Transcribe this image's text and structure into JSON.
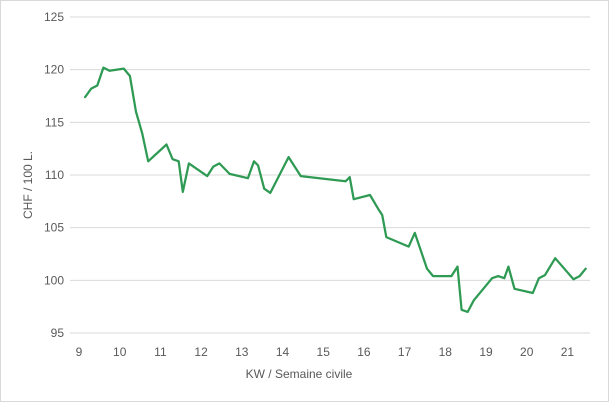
{
  "chart_data": {
    "type": "line",
    "title": "",
    "xlabel": "KW / Semaine civile",
    "ylabel": "CHF / 100 L.",
    "xlim": [
      9,
      21.5
    ],
    "ylim": [
      95,
      125
    ],
    "x_ticks": [
      "9",
      "10",
      "11",
      "12",
      "13",
      "14",
      "15",
      "16",
      "17",
      "18",
      "19",
      "20",
      "21"
    ],
    "y_ticks": [
      "95",
      "100",
      "105",
      "110",
      "115",
      "120",
      "125"
    ],
    "grid": "horizontal",
    "legend": "none",
    "line_color": "#2e9a53",
    "series": [
      {
        "x": [
          9.15,
          9.3,
          9.45,
          9.6,
          9.75,
          10.1,
          10.25,
          10.4,
          10.55,
          10.7,
          11.15,
          11.3,
          11.45,
          11.55,
          11.7,
          12.15,
          12.3,
          12.45,
          12.7,
          13.15,
          13.3,
          13.4,
          13.55,
          13.7,
          14.15,
          14.45,
          15.55,
          15.65,
          15.75,
          16.15,
          16.35,
          16.45,
          16.55,
          17.1,
          17.25,
          17.55,
          17.7,
          18.15,
          18.3,
          18.4,
          18.55,
          18.7,
          19.15,
          19.3,
          19.45,
          19.55,
          19.7,
          20.15,
          20.3,
          20.45,
          20.7,
          21.15,
          21.3,
          21.45
        ],
        "values": [
          117.4,
          118.2,
          118.5,
          120.2,
          119.9,
          120.1,
          119.4,
          116.0,
          114.0,
          111.3,
          112.9,
          111.5,
          111.3,
          108.4,
          111.1,
          109.9,
          110.8,
          111.1,
          110.1,
          109.7,
          111.3,
          110.9,
          108.7,
          108.3,
          111.7,
          109.9,
          109.4,
          109.8,
          107.7,
          108.1,
          106.8,
          106.2,
          104.1,
          103.2,
          104.5,
          101.1,
          100.4,
          100.4,
          101.3,
          97.2,
          97.0,
          98.1,
          100.2,
          100.4,
          100.2,
          101.3,
          99.2,
          98.8,
          100.2,
          100.5,
          102.1,
          100.1,
          100.4,
          101.1
        ]
      }
    ]
  }
}
